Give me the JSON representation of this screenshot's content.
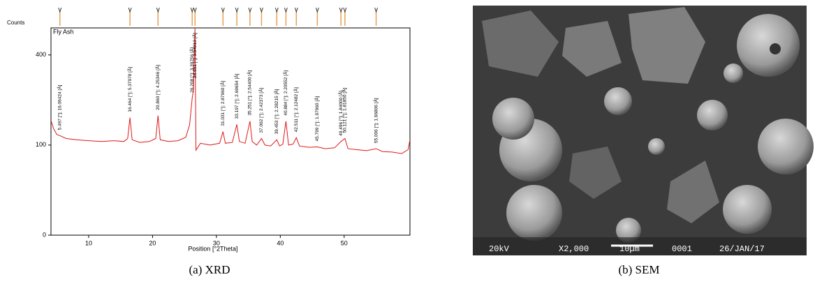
{
  "chart_data": {
    "type": "line",
    "title": "Fly Ash",
    "y_label": "Counts",
    "x_label": "Position [°2Theta]",
    "caption": "(a)   XRD",
    "color": "#e01818",
    "yscale": "sqrt",
    "xlim": [
      4.1,
      60.3
    ],
    "ylim": [
      0,
      529
    ],
    "xticks": [
      10,
      20,
      30,
      40,
      50
    ],
    "yticks": [
      0,
      100,
      400
    ],
    "x": [
      4.1,
      4.5,
      5,
      5.5,
      6.5,
      8,
      10,
      12,
      14,
      15.5,
      16.1,
      16.464,
      16.8,
      18,
      19.5,
      20.5,
      20.86,
      21.2,
      22.5,
      24,
      25.2,
      25.8,
      26.208,
      26.4,
      26.651,
      26.8,
      27.5,
      29,
      30.5,
      31.031,
      31.4,
      32.5,
      33.197,
      33.6,
      34.5,
      35.251,
      35.6,
      36.3,
      37.062,
      37.6,
      38.5,
      39.453,
      39.9,
      40.4,
      40.884,
      41.3,
      42,
      42.511,
      43,
      44.5,
      45.799,
      47,
      48.5,
      49.496,
      50.121,
      50.6,
      52,
      53.5,
      55.006,
      56,
      57.5,
      59,
      60,
      60.3
    ],
    "values": [
      162,
      140,
      125,
      122,
      115,
      112,
      110,
      108,
      110,
      108,
      115,
      170,
      112,
      106,
      108,
      115,
      176,
      112,
      108,
      110,
      118,
      150,
      231,
      260,
      526,
      89,
      104,
      100,
      104,
      132,
      104,
      106,
      151,
      108,
      104,
      160,
      108,
      100,
      115,
      100,
      98,
      112,
      98,
      102,
      160,
      100,
      102,
      117,
      98,
      95,
      96,
      92,
      94,
      108,
      115,
      92,
      90,
      88,
      92,
      86,
      85,
      82,
      90,
      112
    ],
    "peaks": [
      {
        "position": 5.497,
        "label": "5.497 [°]; 16.06424 [Å]"
      },
      {
        "position": 16.464,
        "label": "16.464 [°]; 5.37978 [Å]"
      },
      {
        "position": 20.86,
        "label": "20.860 [°]; 4.25346 [Å]"
      },
      {
        "position": 26.208,
        "label": "26.208 [°]; 3.39756 [Å]"
      },
      {
        "position": 26.651,
        "label": "26.651 [°]; 3.34210 [Å]"
      },
      {
        "position": 31.031,
        "label": "31.031 [°]; 2.87960 [Å]"
      },
      {
        "position": 33.197,
        "label": "33.197 [°]; 2.69654 [Å]"
      },
      {
        "position": 35.251,
        "label": "35.251 [°]; 2.54400 [Å]"
      },
      {
        "position": 37.062,
        "label": "37.062 [°]; 2.42373 [Å]"
      },
      {
        "position": 39.453,
        "label": "39.453 [°]; 2.28215 [Å]"
      },
      {
        "position": 40.884,
        "label": "40.884 [°]; 2.20552 [Å]"
      },
      {
        "position": 42.511,
        "label": "42.511 [°]; 2.12482 [Å]"
      },
      {
        "position": 45.799,
        "label": "45.799 [°]; 1.97960 [Å]"
      },
      {
        "position": 49.496,
        "label": "49.496 [°]; 1.84000 [Å]"
      },
      {
        "position": 50.121,
        "label": "50.121 [°]; 1.81850 [Å]"
      },
      {
        "position": 55.006,
        "label": "55.006 [°]; 1.66806 [Å]"
      }
    ]
  },
  "sem": {
    "caption": "(b)   SEM",
    "voltage": "20kV",
    "magnification": "X2,000",
    "scale": "10µm",
    "image_number": "0001",
    "date": "26/JAN/17"
  }
}
